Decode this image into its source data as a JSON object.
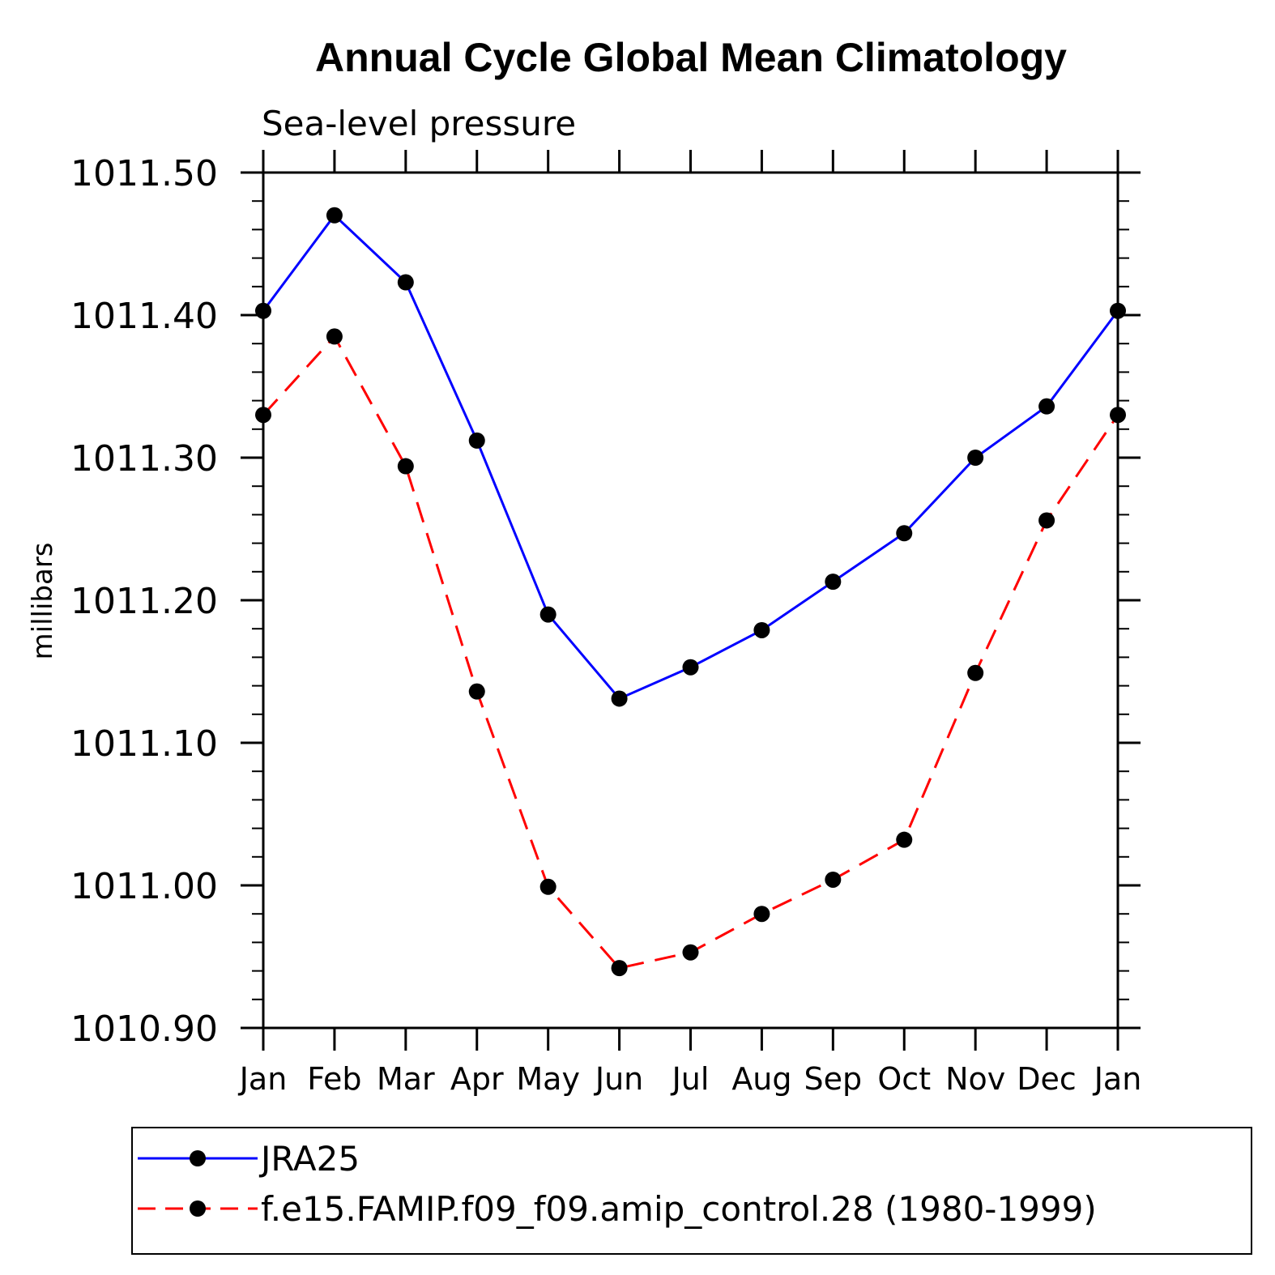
{
  "chart_data": {
    "type": "line",
    "title": "Annual Cycle Global Mean Climatology",
    "subtitle": "Sea-level pressure",
    "xlabel": "",
    "ylabel": "millibars",
    "categories": [
      "Jan",
      "Feb",
      "Mar",
      "Apr",
      "May",
      "Jun",
      "Jul",
      "Aug",
      "Sep",
      "Oct",
      "Nov",
      "Dec",
      "Jan"
    ],
    "ylim": [
      1010.9,
      1011.5
    ],
    "yticks": [
      "1010.90",
      "1011.00",
      "1011.10",
      "1011.20",
      "1011.30",
      "1011.40",
      "1011.50"
    ],
    "series": [
      {
        "name": "JRA25",
        "color": "#0000ff",
        "dash": "solid",
        "marker": "circle",
        "values": [
          1011.403,
          1011.47,
          1011.423,
          1011.312,
          1011.19,
          1011.131,
          1011.153,
          1011.179,
          1011.213,
          1011.247,
          1011.3,
          1011.336,
          1011.403
        ]
      },
      {
        "name": "f.e15.FAMIP.f09_f09.amip_control.28 (1980-1999)",
        "color": "#ff0000",
        "dash": "dashed",
        "marker": "circle",
        "values": [
          1011.33,
          1011.385,
          1011.294,
          1011.136,
          1010.999,
          1010.942,
          1010.953,
          1010.98,
          1011.004,
          1011.032,
          1011.149,
          1011.256,
          1011.33
        ]
      }
    ],
    "legend_position": "bottom"
  }
}
